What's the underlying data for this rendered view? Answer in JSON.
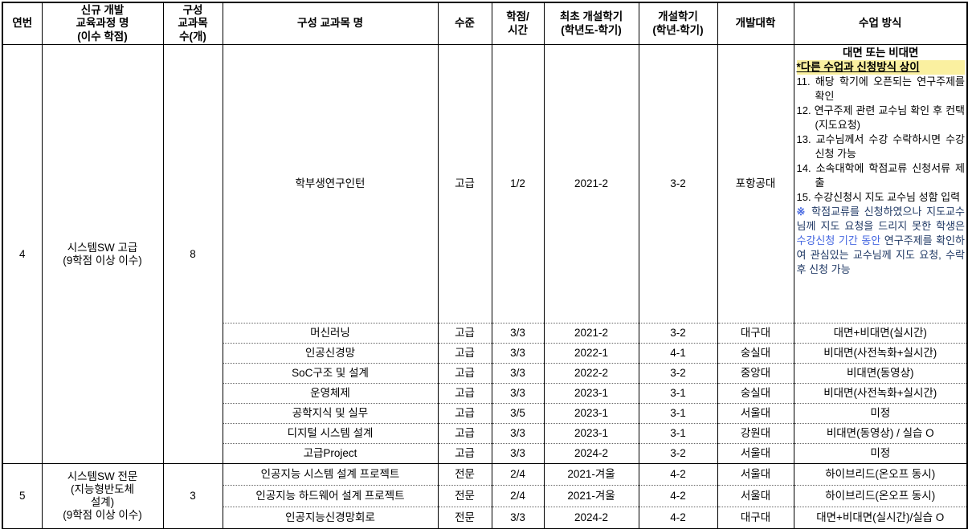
{
  "colors": {
    "border": "#000000",
    "highlight_yellow": "#FAF0A0",
    "note_navy": "#1F3864",
    "link_blue": "#4466E0"
  },
  "header": {
    "cols": [
      "연번",
      "신규 개발\n교육과정 명\n(이수 학점)",
      "구성\n교과목\n수(개)",
      "구성 교과목 명",
      "수준",
      "학점/\n시간",
      "최초 개설학기\n(학년도-학기)",
      "개설학기\n(학년-학기)",
      "개발대학",
      "수업 방식"
    ]
  },
  "groups": [
    {
      "no": "4",
      "program": "시스템SW 고급\n(9학점 이상 이수)",
      "count": "8",
      "courses": [
        {
          "name": "학부생연구인턴",
          "level": "고급",
          "credit": "1/2",
          "first": "2021-2",
          "sem": "3-2",
          "univ": "포항공대",
          "method_detail": {
            "line1": "대면 또는 비대면",
            "line2": "*다른 수업과 신청방식 상이",
            "items": [
              "11. 해당 학기에 오픈되는 연구주제를 확인",
              "12. 연구주제 관련 교수님 확인 후 컨택(지도요청)",
              "13. 교수님께서 수강 수락하시면 수강신청 가능",
              "14. 소속대학에 학점교류 신청서류 제출",
              "15. 수강신청시 지도 교수님 성함 입력"
            ],
            "note": {
              "marker": "※",
              "pre": " 학점교류를 신청하였으나 지도교수님께 지도 요청을 드리지 못한 학생은 ",
              "highlight_blue": "수강신청 기간 동안",
              "post": " 연구주제를 확인하여 관심있는 교수님께 지도 요청, 수락 후 신청 가능"
            }
          }
        },
        {
          "name": "머신러닝",
          "level": "고급",
          "credit": "3/3",
          "first": "2021-2",
          "sem": "3-2",
          "univ": "대구대",
          "method": "대면+비대면(실시간)"
        },
        {
          "name": "인공신경망",
          "level": "고급",
          "credit": "3/3",
          "first": "2022-1",
          "sem": "4-1",
          "univ": "숭실대",
          "method": "비대면(사전녹화+실시간)"
        },
        {
          "name": "SoC구조 및 설계",
          "level": "고급",
          "credit": "3/3",
          "first": "2022-2",
          "sem": "3-2",
          "univ": "중앙대",
          "method": "비대면(동영상)"
        },
        {
          "name": "운영체제",
          "level": "고급",
          "credit": "3/3",
          "first": "2023-1",
          "sem": "3-1",
          "univ": "숭실대",
          "method": "비대면(사전녹화+실시간)"
        },
        {
          "name": "공학지식 및 실무",
          "level": "고급",
          "credit": "3/5",
          "first": "2023-1",
          "sem": "3-1",
          "univ": "서울대",
          "method": "미정"
        },
        {
          "name": "디지털 시스템 설계",
          "level": "고급",
          "credit": "3/3",
          "first": "2023-1",
          "sem": "3-1",
          "univ": "강원대",
          "method": "비대면(동영상) / 실습 O"
        },
        {
          "name": "고급Project",
          "level": "고급",
          "credit": "3/3",
          "first": "2024-2",
          "sem": "3-2",
          "univ": "서울대",
          "method": "미정"
        }
      ]
    },
    {
      "no": "5",
      "program": "시스템SW 전문\n(지능형반도체\n설계)\n(9학점 이상 이수)",
      "count": "3",
      "courses": [
        {
          "name": "인공지능 시스템 설계 프로젝트",
          "level": "전문",
          "credit": "2/4",
          "first": "2021-겨울",
          "sem": "4-2",
          "univ": "서울대",
          "method": "하이브리드(온오프 동시)"
        },
        {
          "name": "인공지능 하드웨어 설계 프로젝트",
          "level": "전문",
          "credit": "2/4",
          "first": "2021-겨울",
          "sem": "4-2",
          "univ": "서울대",
          "method": "하이브리드(온오프 동시)"
        },
        {
          "name": "인공지능신경망회로",
          "level": "전문",
          "credit": "3/3",
          "first": "2024-2",
          "sem": "4-2",
          "univ": "대구대",
          "method": "대면+비대면(실시간)/실습 O"
        }
      ]
    }
  ]
}
